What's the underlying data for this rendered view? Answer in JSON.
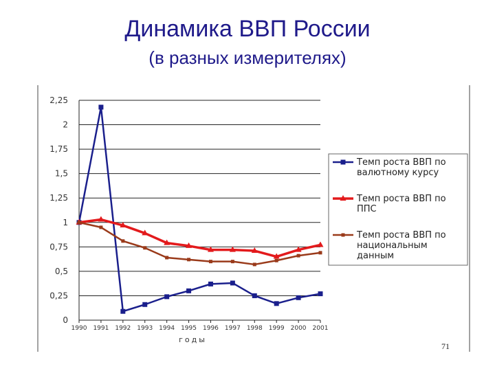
{
  "page": {
    "title": "Динамика ВВП России",
    "subtitle": "(в разных измерителях)",
    "page_number": "71"
  },
  "chart_data": {
    "type": "line",
    "title": "",
    "xlabel": "годы",
    "ylabel": "",
    "x": [
      "1990",
      "1991",
      "1992",
      "1993",
      "1994",
      "1995",
      "1996",
      "1997",
      "1998",
      "1999",
      "2000",
      "2001"
    ],
    "ylim": [
      0,
      2.25
    ],
    "yticks": [
      "0",
      "0,25",
      "0,5",
      "0,75",
      "1",
      "1,25",
      "1,5",
      "1,75",
      "2",
      "2,25"
    ],
    "grid": "horizontal",
    "legend_position": "right",
    "series": [
      {
        "name": "Темп роста ВВП по валютному курсу",
        "color": "#1a1f8c",
        "marker": "square",
        "values": [
          1.0,
          2.18,
          0.09,
          0.16,
          0.24,
          0.3,
          0.37,
          0.38,
          0.25,
          0.17,
          0.23,
          0.27
        ]
      },
      {
        "name": "Темп роста ВВП по ППС",
        "color": "#e31a1c",
        "marker": "triangle",
        "values": [
          1.0,
          1.03,
          0.97,
          0.89,
          0.79,
          0.76,
          0.72,
          0.72,
          0.71,
          0.65,
          0.72,
          0.77
        ]
      },
      {
        "name": "Темп роста ВВП по национальным данным",
        "color": "#9a3a1a",
        "marker": "small-square",
        "values": [
          1.0,
          0.95,
          0.81,
          0.74,
          0.64,
          0.62,
          0.6,
          0.6,
          0.57,
          0.61,
          0.66,
          0.69
        ]
      }
    ]
  }
}
